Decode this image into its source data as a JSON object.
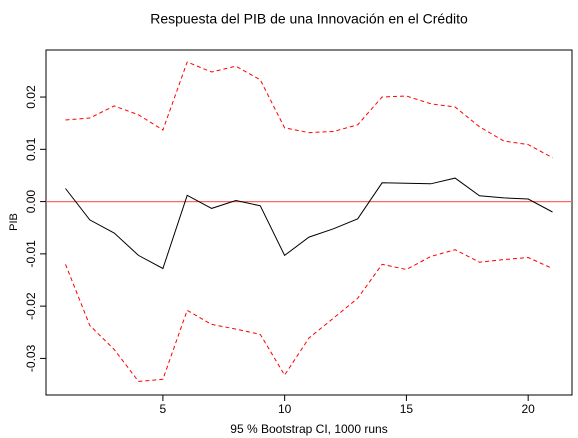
{
  "chart_data": {
    "type": "line",
    "title": "Respuesta del PIB de una Innovación en el Crédito",
    "x_label": "95 % Bootstrap CI, 1000 runs",
    "y_label": "PIB",
    "x": [
      1,
      2,
      3,
      4,
      5,
      6,
      7,
      8,
      9,
      10,
      11,
      12,
      13,
      14,
      15,
      16,
      17,
      18,
      19,
      20,
      21
    ],
    "series": [
      {
        "color": "#000000",
        "dash": false,
        "values": [
          0.0025,
          -0.0035,
          -0.006,
          -0.0103,
          -0.0128,
          0.0012,
          -0.0013,
          0.0002,
          -0.0008,
          -0.0103,
          -0.0068,
          -0.0052,
          -0.0033,
          0.0036,
          0.0035,
          0.0034,
          0.0045,
          0.0011,
          0.0007,
          0.0005,
          -0.002
        ]
      },
      {
        "color": "#ff0000",
        "dash": true,
        "values": [
          0.0156,
          0.016,
          0.0183,
          0.0166,
          0.0137,
          0.0267,
          0.0248,
          0.0259,
          0.0233,
          0.0141,
          0.0132,
          0.0134,
          0.0147,
          0.02,
          0.0202,
          0.0187,
          0.0181,
          0.0143,
          0.0116,
          0.0109,
          0.0084
        ]
      },
      {
        "color": "#ff0000",
        "dash": true,
        "values": [
          -0.012,
          -0.0237,
          -0.0283,
          -0.0344,
          -0.034,
          -0.0208,
          -0.0235,
          -0.0244,
          -0.0254,
          -0.0332,
          -0.0261,
          -0.0223,
          -0.0185,
          -0.012,
          -0.013,
          -0.0105,
          -0.0092,
          -0.0116,
          -0.0111,
          -0.0107,
          -0.0128
        ]
      }
    ],
    "hline": {
      "value": 0,
      "color": "#ff6666"
    },
    "xlim": [
      0.2,
      21.8
    ],
    "xticks": [
      5,
      10,
      15,
      20
    ],
    "ylim": [
      -0.037,
      0.029
    ],
    "yticks": [
      -0.03,
      -0.02,
      -0.01,
      {
        "value": 0,
        "label": "0.00"
      },
      0.01,
      0.02
    ],
    "grid": false
  }
}
